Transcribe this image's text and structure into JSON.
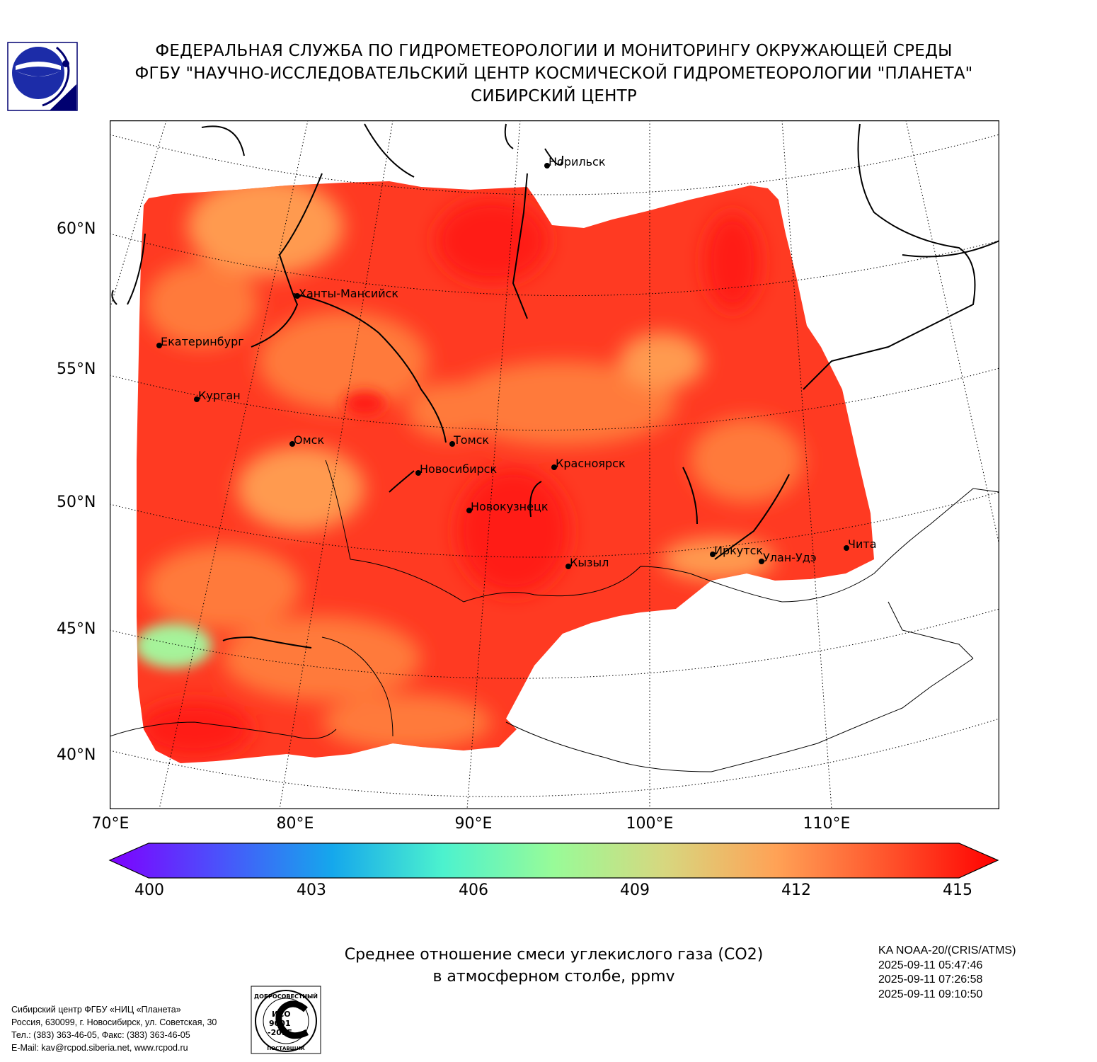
{
  "header": {
    "line1": "ФЕДЕРАЛЬНАЯ СЛУЖБА ПО ГИДРОМЕТЕОРОЛОГИИ И МОНИТОРИНГУ ОКРУЖАЮЩЕЙ СРЕДЫ",
    "line2": "ФГБУ \"НАУЧНО-ИССЛЕДОВАТЕЛЬСКИЙ ЦЕНТР КОСМИЧЕСКОЙ ГИДРОМЕТЕОРОЛОГИИ \"ПЛАНЕТА\"",
    "line3": "СИБИРСКИЙ ЦЕНТР"
  },
  "map": {
    "lat_labels": [
      "60°N",
      "55°N",
      "50°N",
      "45°N",
      "40°N"
    ],
    "lon_labels": [
      "70°E",
      "80°E",
      "90°E",
      "100°E",
      "110°E"
    ],
    "cities": [
      {
        "name": "Норильск"
      },
      {
        "name": "Ханты-Мансийск"
      },
      {
        "name": "Екатеринбург"
      },
      {
        "name": "Курган"
      },
      {
        "name": "Омск"
      },
      {
        "name": "Томск"
      },
      {
        "name": "Новосибирск"
      },
      {
        "name": "Красноярск"
      },
      {
        "name": "Новокузнецк"
      },
      {
        "name": "Кызыл"
      },
      {
        "name": "Иркутск"
      },
      {
        "name": "Улан-Удэ"
      },
      {
        "name": "Чита"
      }
    ],
    "colorbar": {
      "ticks": [
        "400",
        "403",
        "406",
        "409",
        "412",
        "415"
      ],
      "min": 400,
      "max": 415,
      "colors": [
        "#7f00ff",
        "#4a53fb",
        "#15a7ec",
        "#4cf2ce",
        "#98fb98",
        "#d7d77f",
        "#ffa256",
        "#ff542c",
        "#ff0000"
      ]
    },
    "field_colors": {
      "base": "#ff3a22",
      "warm": "#ff7a3a",
      "orange": "#ff9a50",
      "deep": "#ff1c14",
      "green": "#a6f39a"
    }
  },
  "caption": {
    "line1": "Среднее отношение смеси углекислого газа (CO2)",
    "line2": "в атмосферном столбе, ppmv"
  },
  "satellite": {
    "name": "KA NOAA-20/(CRIS/ATMS)",
    "times": [
      "2025-09-11 05:47:46",
      "2025-09-11 07:26:58",
      "2025-09-11 09:10:50"
    ]
  },
  "footer": {
    "line1": "Сибирский центр ФГБУ «НИЦ «Планета»",
    "line2": "Россия, 630099, г. Новосибирск, ул. Советская, 30",
    "line3": "Тел.: (383) 363-46-05, Факс: (383) 363-46-05",
    "line4": "E-Mail: kav@rcpod.siberia.net, www.rcpod.ru"
  },
  "iso": {
    "top_text": "ДОБРОСОВЕСТНЫЙ",
    "bottom_text": "ПОСТАВЩИК",
    "l1": "ИСО",
    "l2": "9001",
    "l3": "-2015"
  }
}
